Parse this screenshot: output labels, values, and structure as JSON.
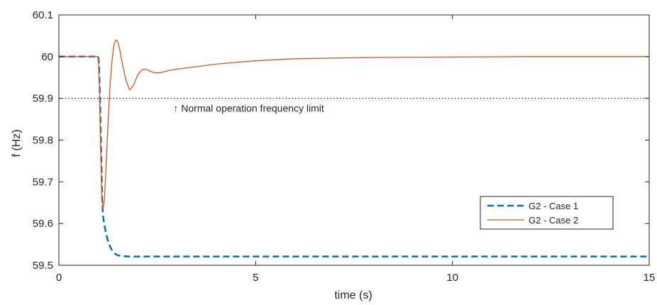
{
  "chart_data": {
    "type": "line",
    "xlabel": "time (s)",
    "ylabel": "f (Hz)",
    "xlim": [
      0,
      15
    ],
    "ylim": [
      59.5,
      60.1
    ],
    "xticks": [
      0,
      5,
      10,
      15
    ],
    "xtick_labels": [
      "0",
      "5",
      "10",
      "15"
    ],
    "yticks": [
      59.5,
      59.6,
      59.7,
      59.8,
      59.9,
      60,
      60.1
    ],
    "ytick_labels": [
      "59.5",
      "59.6",
      "59.7",
      "59.8",
      "59.9",
      "60",
      "60.1"
    ],
    "grid": false,
    "legend_position": "bottom-right",
    "series": [
      {
        "name": "G2 - Case 1",
        "color": "#0072BD",
        "style": "dashed",
        "x": [
          0,
          1.0,
          1.02,
          1.05,
          1.08,
          1.1,
          1.12,
          1.15,
          1.2,
          1.25,
          1.3,
          1.35,
          1.4,
          1.45,
          1.5,
          1.6,
          1.8,
          2.0,
          3,
          5,
          10,
          15
        ],
        "y": [
          60,
          60,
          59.98,
          59.88,
          59.75,
          59.66,
          59.62,
          59.6,
          59.575,
          59.558,
          59.545,
          59.536,
          59.53,
          59.526,
          59.524,
          59.522,
          59.521,
          59.521,
          59.521,
          59.521,
          59.521,
          59.521
        ]
      },
      {
        "name": "G2 - Case 2",
        "color": "#D95319",
        "style": "solid",
        "x": [
          0,
          1.0,
          1.03,
          1.06,
          1.09,
          1.12,
          1.16,
          1.2,
          1.25,
          1.3,
          1.35,
          1.4,
          1.45,
          1.5,
          1.55,
          1.6,
          1.7,
          1.8,
          1.9,
          2.0,
          2.1,
          2.2,
          2.3,
          2.4,
          2.5,
          2.6,
          2.8,
          3.0,
          3.5,
          4.0,
          5.0,
          6.0,
          8.0,
          10.0,
          12.0,
          15.0
        ],
        "y": [
          60,
          60,
          59.93,
          59.79,
          59.67,
          59.635,
          59.66,
          59.74,
          59.84,
          59.93,
          59.99,
          60.03,
          60.04,
          60.035,
          60.015,
          59.99,
          59.945,
          59.92,
          59.932,
          59.955,
          59.968,
          59.97,
          59.966,
          59.962,
          59.961,
          59.962,
          59.967,
          59.97,
          59.976,
          59.982,
          59.99,
          59.995,
          59.998,
          59.999,
          60.0,
          60.0
        ]
      }
    ],
    "reference_line": {
      "y": 59.9,
      "color": "#000000",
      "style": "dotted"
    },
    "annotation": {
      "text": "↑ Normal operation frequency limit",
      "x": 3,
      "y": 59.885
    }
  }
}
